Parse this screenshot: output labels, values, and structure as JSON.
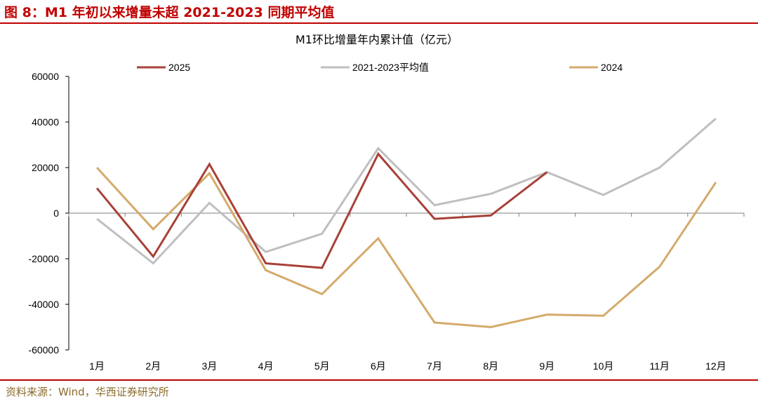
{
  "header": {
    "figure_title": "图 8：M1 年初以来增量未超 2021-2023 同期平均值"
  },
  "footer": {
    "source": "资料来源：Wind，华西证券研究所"
  },
  "colors": {
    "accent": "#c00000",
    "series_2025": "#a84038",
    "series_avg": "#bfbfbf",
    "series_2024": "#d4aa6a"
  },
  "chart_data": {
    "type": "line",
    "title": "M1环比增量年内累计值（亿元）",
    "xlabel": "",
    "ylabel": "",
    "categories": [
      "1月",
      "2月",
      "3月",
      "4月",
      "5月",
      "6月",
      "7月",
      "8月",
      "9月",
      "10月",
      "11月",
      "12月"
    ],
    "ylim": [
      -60000,
      60000
    ],
    "yticks": [
      60000,
      40000,
      20000,
      0,
      -20000,
      -40000,
      -60000
    ],
    "ytick_labels": [
      "60000",
      "40000",
      "20000",
      "0",
      "-20000",
      "-40000",
      "-60000"
    ],
    "legend_position": "top",
    "series": [
      {
        "name": "2025",
        "color": "#a84038",
        "values": [
          11000,
          -19000,
          21500,
          -22000,
          -24000,
          26000,
          -2500,
          -1000,
          18000,
          null,
          null,
          null
        ]
      },
      {
        "name": "2021-2023平均值",
        "color": "#bfbfbf",
        "values": [
          -2500,
          -22000,
          4500,
          -17000,
          -9000,
          28500,
          3500,
          8500,
          18000,
          8000,
          20000,
          41500
        ]
      },
      {
        "name": "2024",
        "color": "#d4aa6a",
        "values": [
          20000,
          -7000,
          17500,
          -25000,
          -35500,
          -11000,
          -48000,
          -50000,
          -44500,
          -45000,
          -23500,
          13500
        ]
      }
    ]
  }
}
